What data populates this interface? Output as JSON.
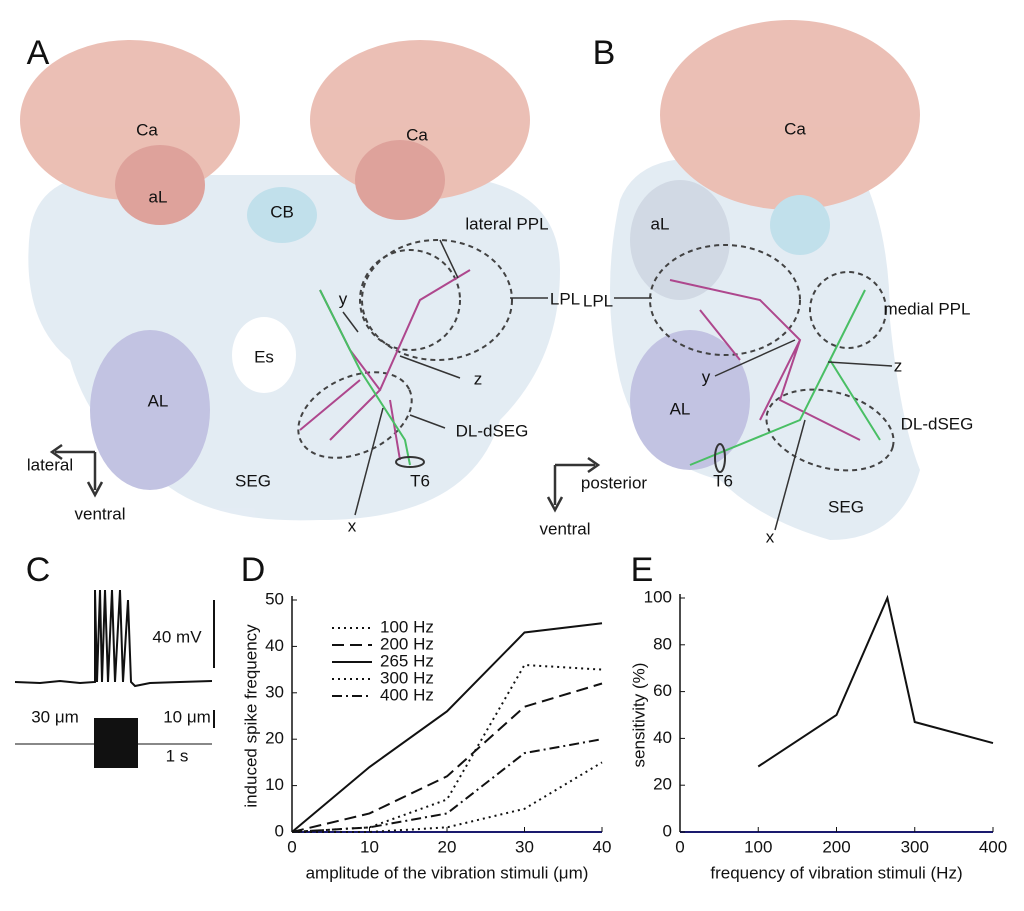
{
  "panels": {
    "A": {
      "letter": "A",
      "labels": [
        "Ca",
        "Ca",
        "aL",
        "CB",
        "lateral PPL",
        "LPL",
        "y",
        "Es",
        "z",
        "AL",
        "DL-dSEG",
        "SEG",
        "T6",
        "x",
        "lateral",
        "ventral"
      ]
    },
    "B": {
      "letter": "B",
      "labels": [
        "Ca",
        "aL",
        "LPL",
        "medial PPL",
        "y",
        "z",
        "AL",
        "DL-dSEG",
        "T6",
        "x",
        "SEG",
        "posterior",
        "ventral"
      ]
    },
    "C": {
      "letter": "C",
      "labels": [
        "40 mV",
        "30 μm",
        "10 μm",
        "1 s"
      ]
    }
  },
  "chart_data": [
    {
      "type": "line",
      "letter": "D",
      "xlabel": "amplitude of the vibration stimuli (μm)",
      "ylabel": "induced spike frequency",
      "x": [
        0,
        10,
        20,
        30,
        40
      ],
      "series": [
        {
          "name": "100 Hz",
          "color": "#111111",
          "dash": "dotted",
          "values": [
            0,
            0,
            1,
            5,
            15
          ]
        },
        {
          "name": "200 Hz",
          "color": "#111111",
          "dash": "dashed",
          "values": [
            0,
            4,
            12,
            27,
            32
          ]
        },
        {
          "name": "265 Hz",
          "color": "#111111",
          "dash": "solid",
          "values": [
            0,
            14,
            26,
            43,
            45
          ]
        },
        {
          "name": "300 Hz",
          "color": "#111111",
          "dash": "dotted",
          "values": [
            0,
            1,
            7,
            36,
            35
          ]
        },
        {
          "name": "400 Hz",
          "color": "#111111",
          "dash": "dashdot",
          "values": [
            0,
            1,
            4,
            17,
            20
          ]
        }
      ],
      "xlim": [
        0,
        40
      ],
      "xticks": [
        0,
        10,
        20,
        30,
        40
      ],
      "ylim": [
        0,
        50
      ],
      "yticks": [
        0,
        10,
        20,
        30,
        40,
        50
      ],
      "legend": "upper left"
    },
    {
      "type": "line",
      "letter": "E",
      "xlabel": "frequency of vibration stimuli (Hz)",
      "ylabel": "sensitivity  (%)",
      "x": [
        100,
        200,
        265,
        300,
        400
      ],
      "series": [
        {
          "color": "#111111",
          "dash": "solid",
          "values": [
            28,
            50,
            100,
            47,
            38
          ]
        }
      ],
      "xlim": [
        0,
        400
      ],
      "xticks": [
        0,
        100,
        200,
        300,
        400
      ],
      "ylim": [
        0,
        100
      ],
      "yticks": [
        0,
        20,
        40,
        60,
        80,
        100
      ]
    }
  ]
}
